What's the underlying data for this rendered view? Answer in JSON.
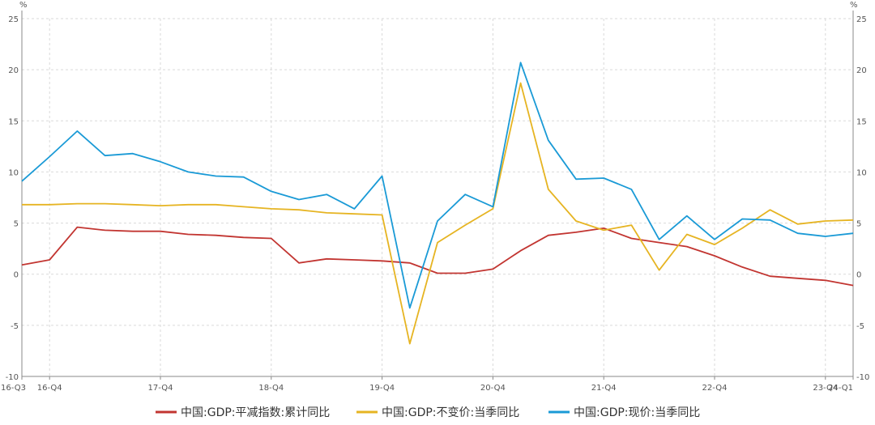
{
  "chart_data": {
    "type": "line",
    "title": "",
    "xlabel": "",
    "ylabel": "",
    "y_unit_left": "%",
    "y_unit_right": "%",
    "ylim": [
      -10,
      25
    ],
    "yticks": [
      -10,
      -5,
      0,
      5,
      10,
      15,
      20,
      25
    ],
    "grid": true,
    "legend_position": "bottom",
    "x_tick_labels": [
      {
        "index": 0,
        "label": "16-Q3"
      },
      {
        "index": 1,
        "label": "16-Q4"
      },
      {
        "index": 5,
        "label": "17-Q4"
      },
      {
        "index": 9,
        "label": "18-Q4"
      },
      {
        "index": 13,
        "label": "19-Q4"
      },
      {
        "index": 17,
        "label": "20-Q4"
      },
      {
        "index": 21,
        "label": "21-Q4"
      },
      {
        "index": 25,
        "label": "22-Q4"
      },
      {
        "index": 29,
        "label": "23-Q4"
      },
      {
        "index": 30,
        "label": "24-Q1"
      }
    ],
    "categories": [
      "16-Q3",
      "16-Q4",
      "17-Q1",
      "17-Q2",
      "17-Q3",
      "17-Q4",
      "18-Q1",
      "18-Q2",
      "18-Q3",
      "18-Q4",
      "19-Q1",
      "19-Q2",
      "19-Q3",
      "19-Q4",
      "20-Q1",
      "20-Q2",
      "20-Q3",
      "20-Q4",
      "21-Q1",
      "21-Q2",
      "21-Q3",
      "21-Q4",
      "22-Q1",
      "22-Q2",
      "22-Q3",
      "22-Q4",
      "23-Q1",
      "23-Q2",
      "23-Q3",
      "23-Q4",
      "24-Q1"
    ],
    "series": [
      {
        "name": "中国:GDP:平减指数:累计同比",
        "color": "#c23531",
        "values": [
          0.9,
          1.4,
          4.6,
          4.3,
          4.2,
          4.2,
          3.9,
          3.8,
          3.6,
          3.5,
          1.1,
          1.5,
          1.4,
          1.3,
          1.1,
          0.1,
          0.1,
          0.5,
          2.3,
          3.8,
          4.1,
          4.5,
          3.5,
          3.1,
          2.7,
          1.8,
          0.7,
          -0.2,
          -0.4,
          -0.6,
          -1.1
        ]
      },
      {
        "name": "中国:GDP:不变价:当季同比",
        "color": "#e6b422",
        "values": [
          6.8,
          6.8,
          6.9,
          6.9,
          6.8,
          6.7,
          6.8,
          6.8,
          6.6,
          6.4,
          6.3,
          6.0,
          5.9,
          5.8,
          -6.8,
          3.1,
          4.8,
          6.4,
          18.7,
          8.3,
          5.2,
          4.3,
          4.8,
          0.4,
          3.9,
          2.9,
          4.5,
          6.3,
          4.9,
          5.2,
          5.3
        ]
      },
      {
        "name": "中国:GDP:现价:当季同比",
        "color": "#1a9ad6",
        "values": [
          9.1,
          11.5,
          14.0,
          11.6,
          11.8,
          11.0,
          10.0,
          9.6,
          9.5,
          8.1,
          7.3,
          7.8,
          6.4,
          9.6,
          -3.3,
          5.2,
          7.8,
          6.6,
          20.7,
          13.1,
          9.3,
          9.4,
          8.3,
          3.4,
          5.7,
          3.4,
          5.4,
          5.3,
          4.0,
          3.7,
          4.0
        ]
      }
    ]
  }
}
